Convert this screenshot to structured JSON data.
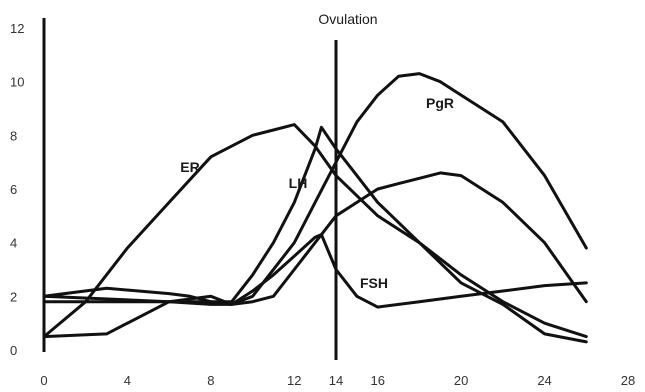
{
  "chart_data": {
    "type": "line",
    "title": "",
    "xlabel": "",
    "ylabel": "",
    "xlim": [
      0,
      28
    ],
    "ylim": [
      0,
      12
    ],
    "xticks": [
      0,
      4,
      8,
      12,
      14,
      16,
      20,
      24,
      28
    ],
    "yticks": [
      0,
      2,
      4,
      6,
      8,
      10,
      12
    ],
    "grid": false,
    "series": [
      {
        "name": "ER",
        "x": [
          0,
          2,
          4,
          6,
          8,
          10,
          11,
          12,
          13,
          14,
          16,
          18,
          20,
          22,
          24,
          26
        ],
        "y": [
          0.5,
          1.8,
          3.8,
          5.5,
          7.2,
          8.0,
          8.2,
          8.4,
          7.6,
          6.5,
          5.0,
          4.0,
          2.8,
          1.8,
          1.0,
          0.5
        ]
      },
      {
        "name": "LH",
        "x": [
          0,
          4,
          6,
          8,
          9,
          10,
          11,
          12,
          13,
          13.3,
          14,
          15,
          16,
          18,
          20,
          22,
          24,
          26
        ],
        "y": [
          1.8,
          1.8,
          1.8,
          1.8,
          1.8,
          2.8,
          4.0,
          5.5,
          7.5,
          8.3,
          7.5,
          6.5,
          5.5,
          4.0,
          2.5,
          1.7,
          0.6,
          0.3
        ]
      },
      {
        "name": "FSH",
        "x": [
          0,
          3,
          6,
          7,
          8,
          9,
          10,
          11,
          12,
          13,
          13.3,
          14,
          15,
          16,
          18,
          20,
          22,
          24,
          26
        ],
        "y": [
          2.0,
          2.3,
          2.1,
          2.0,
          1.8,
          1.7,
          2.2,
          2.8,
          3.5,
          4.2,
          4.3,
          3.0,
          2.0,
          1.6,
          1.8,
          2.0,
          2.2,
          2.4,
          2.5
        ]
      },
      {
        "name": "PgR",
        "x": [
          0,
          3,
          6,
          8,
          9,
          10,
          11,
          12,
          13,
          14,
          15,
          16,
          17,
          18,
          19,
          20,
          21,
          22,
          24,
          26
        ],
        "y": [
          0.5,
          0.6,
          1.8,
          2.0,
          1.7,
          1.8,
          2.0,
          3.0,
          4.0,
          5.0,
          5.5,
          6.0,
          6.2,
          6.4,
          6.6,
          6.5,
          6.0,
          5.5,
          4.0,
          1.8
        ]
      },
      {
        "name": "",
        "x": [
          0,
          6,
          8,
          9,
          10,
          12,
          13,
          14,
          15,
          16,
          17,
          18,
          19,
          20,
          22,
          24,
          26
        ],
        "y": [
          2.0,
          1.8,
          1.7,
          1.7,
          2.0,
          4.0,
          5.5,
          7.0,
          8.5,
          9.5,
          10.2,
          10.3,
          10.0,
          9.5,
          8.5,
          6.5,
          3.8
        ]
      }
    ],
    "annotations": [
      {
        "label": "Ovulation",
        "x": 14
      }
    ]
  }
}
